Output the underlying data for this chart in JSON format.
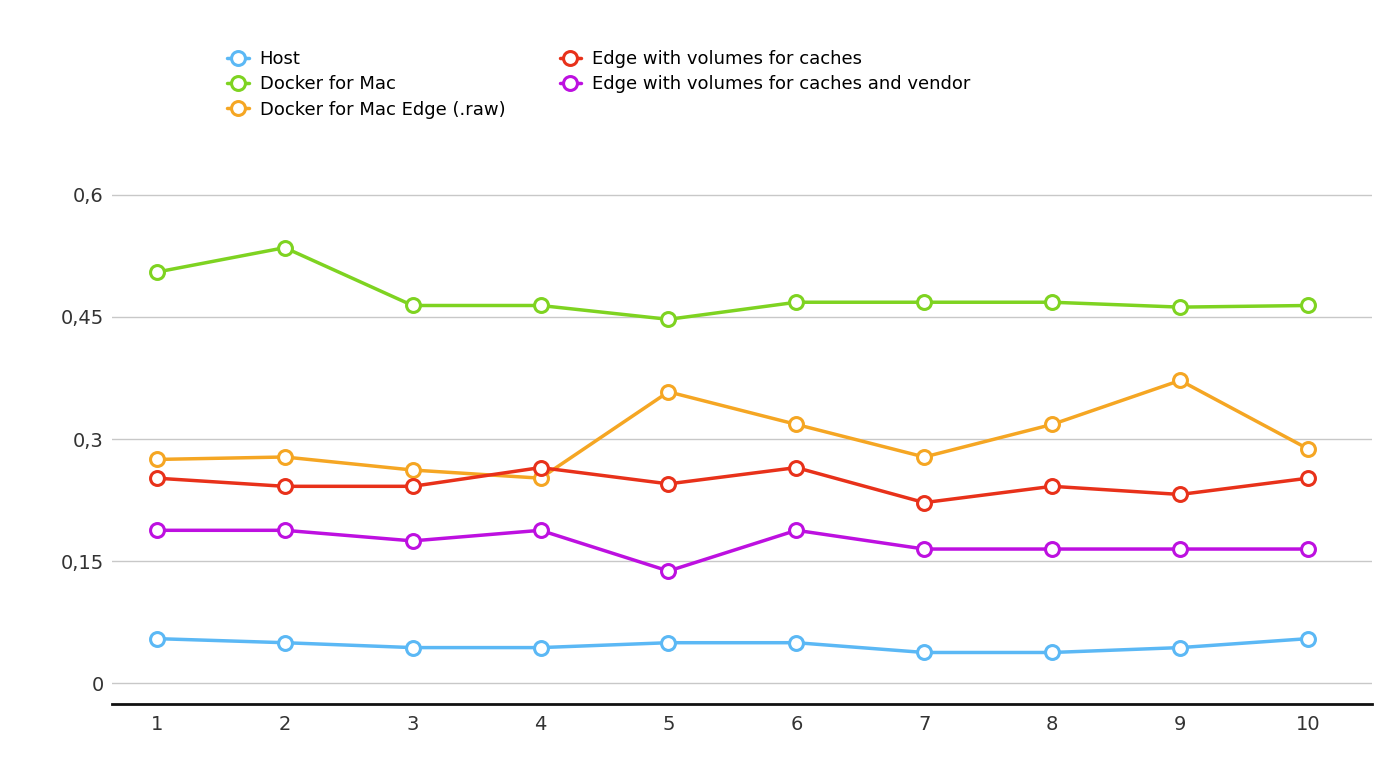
{
  "x": [
    1,
    2,
    3,
    4,
    5,
    6,
    7,
    8,
    9,
    10
  ],
  "series_order": [
    "Host",
    "Docker for Mac",
    "Docker for Mac Edge (.raw)",
    "Edge with volumes for caches",
    "Edge with volumes for caches and vendor"
  ],
  "series": {
    "Host": {
      "values": [
        0.055,
        0.05,
        0.044,
        0.044,
        0.05,
        0.05,
        0.038,
        0.038,
        0.044,
        0.055
      ],
      "color": "#5bb8f5",
      "label": "Host"
    },
    "Docker for Mac": {
      "values": [
        0.505,
        0.535,
        0.464,
        0.464,
        0.447,
        0.468,
        0.468,
        0.468,
        0.462,
        0.464
      ],
      "color": "#7ed321",
      "label": "Docker for Mac"
    },
    "Docker for Mac Edge (.raw)": {
      "values": [
        0.275,
        0.278,
        0.262,
        0.252,
        0.358,
        0.318,
        0.278,
        0.318,
        0.372,
        0.288
      ],
      "color": "#f5a623",
      "label": "Docker for Mac Edge (.raw)"
    },
    "Edge with volumes for caches": {
      "values": [
        0.252,
        0.242,
        0.242,
        0.265,
        0.245,
        0.265,
        0.222,
        0.242,
        0.232,
        0.252
      ],
      "color": "#e8311a",
      "label": "Edge with volumes for caches"
    },
    "Edge with volumes for caches and vendor": {
      "values": [
        0.188,
        0.188,
        0.175,
        0.188,
        0.138,
        0.188,
        0.165,
        0.165,
        0.165,
        0.165
      ],
      "color": "#bd10e0",
      "label": "Edge with volumes for caches and vendor"
    }
  },
  "yticks": [
    0,
    0.15,
    0.3,
    0.45,
    0.6
  ],
  "ytick_labels": [
    "0",
    "0,15",
    "0,3",
    "0,45",
    "0,6"
  ],
  "xticks": [
    1,
    2,
    3,
    4,
    5,
    6,
    7,
    8,
    9,
    10
  ],
  "ylim": [
    -0.025,
    0.67
  ],
  "xlim": [
    0.65,
    10.5
  ],
  "line_width": 2.5,
  "marker_size": 10,
  "marker_edge_width": 2.2,
  "background_color": "#ffffff",
  "grid_color": "#c8c8c8",
  "legend_layout": [
    [
      "Host",
      "Docker for Mac"
    ],
    [
      "Docker for Mac Edge (.raw)",
      "Edge with volumes for caches"
    ],
    [
      "Edge with volumes for caches and vendor",
      null
    ]
  ]
}
